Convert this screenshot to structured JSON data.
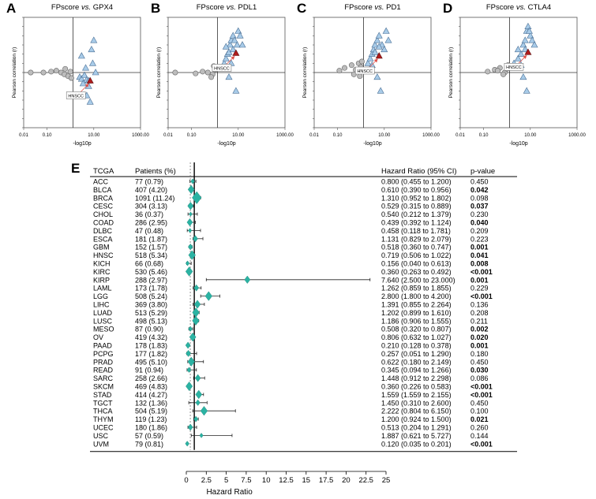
{
  "panels": [
    {
      "letter": "A",
      "title_prefix": "FPscore ",
      "title_vs": "vs.",
      "title_gene": " GPX4"
    },
    {
      "letter": "B",
      "title_prefix": "FPscore ",
      "title_vs": "vs.",
      "title_gene": " PDL1"
    },
    {
      "letter": "C",
      "title_prefix": "FPscore ",
      "title_vs": "vs.",
      "title_gene": " PD1"
    },
    {
      "letter": "D",
      "title_prefix": "FPscore ",
      "title_vs": "vs.",
      "title_gene": " CTLA4"
    }
  ],
  "panel_e_letter": "E",
  "colors": {
    "teal": "#2bb3a3",
    "gray_point": "#bdbdbd",
    "blue_triangle": "#a8cbe8",
    "red_triangle": "#b01c1c",
    "annotation": "#e0524a"
  },
  "chart_data": [
    {
      "type": "scatter",
      "panel": "A",
      "title": "FPscore vs. GPX4",
      "xlabel": "-log10p",
      "ylabel": "Pearson correlation (r)",
      "xscale": "log",
      "xlim": [
        0.01,
        1000
      ],
      "ylim": [
        -0.6,
        0.6
      ],
      "x_ticks": [
        "0.01",
        "0.10",
        "10.00",
        "1000.00"
      ],
      "y_ticks": [
        "0.6",
        "0.5",
        "0.4",
        "0.3",
        "0.2",
        "0.1",
        "0.0",
        "-0.1",
        "-0.2",
        "-0.3",
        "-0.4",
        "-0.5",
        "-0.6"
      ],
      "vline_x": 1.3,
      "annotation": "HNSCC",
      "highlight": {
        "x": 7.0,
        "y": -0.09
      },
      "nonsig": [
        [
          0.02,
          0.0
        ],
        [
          0.07,
          0.0
        ],
        [
          0.15,
          0.01
        ],
        [
          0.25,
          0.02
        ],
        [
          0.4,
          0.0
        ],
        [
          0.55,
          -0.02
        ],
        [
          0.8,
          -0.04
        ],
        [
          1.0,
          0.01
        ],
        [
          0.6,
          0.04
        ],
        [
          1.1,
          -0.06
        ]
      ],
      "sig": [
        [
          2.5,
          -0.05
        ],
        [
          3.0,
          -0.07
        ],
        [
          4.0,
          -0.03
        ],
        [
          5.0,
          -0.08
        ],
        [
          6.0,
          -0.09
        ],
        [
          3.0,
          0.18
        ],
        [
          4.5,
          0.05
        ],
        [
          8.0,
          0.25
        ],
        [
          9.0,
          0.1
        ],
        [
          10.0,
          0.35
        ],
        [
          6.0,
          -0.15
        ],
        [
          7.0,
          -0.32
        ],
        [
          12.0,
          0.0
        ],
        [
          5.0,
          -0.25
        ],
        [
          3.5,
          -0.12
        ]
      ]
    },
    {
      "type": "scatter",
      "panel": "B",
      "title": "FPscore vs. PDL1",
      "xlabel": "-log10p",
      "ylabel": "Pearson correlation (r)",
      "xscale": "log",
      "xlim": [
        0.01,
        1000
      ],
      "ylim": [
        -0.6,
        0.6
      ],
      "x_ticks": [
        "0.01",
        "0.10",
        "10.00",
        "1000.00"
      ],
      "y_ticks": [
        "0.6",
        "0.5",
        "0.4",
        "0.3",
        "0.2",
        "0.1",
        "0.0",
        "-0.1",
        "-0.2",
        "-0.3",
        "-0.4",
        "-0.5",
        "-0.6"
      ],
      "vline_x": 1.3,
      "annotation": "HNSCC",
      "highlight": {
        "x": 8.0,
        "y": 0.21
      },
      "nonsig": [
        [
          0.02,
          0.0
        ],
        [
          0.15,
          -0.01
        ],
        [
          0.3,
          0.01
        ],
        [
          0.5,
          0.0
        ],
        [
          0.8,
          -0.02
        ],
        [
          1.0,
          0.03
        ],
        [
          0.7,
          -0.05
        ],
        [
          1.1,
          0.05
        ],
        [
          0.9,
          0.07
        ]
      ],
      "sig": [
        [
          2.0,
          0.05
        ],
        [
          2.5,
          0.1
        ],
        [
          3.0,
          0.15
        ],
        [
          3.5,
          0.2
        ],
        [
          4.0,
          0.22
        ],
        [
          4.5,
          0.3
        ],
        [
          5.0,
          0.35
        ],
        [
          6.0,
          0.4
        ],
        [
          7.0,
          0.35
        ],
        [
          9.0,
          0.3
        ],
        [
          10.0,
          0.45
        ],
        [
          12.0,
          0.4
        ],
        [
          15.0,
          0.3
        ],
        [
          4.0,
          -0.05
        ],
        [
          8.0,
          -0.2
        ],
        [
          6.0,
          0.25
        ],
        [
          3.0,
          0.28
        ],
        [
          5.0,
          0.1
        ]
      ]
    },
    {
      "type": "scatter",
      "panel": "C",
      "title": "FPscore vs. PD1",
      "xlabel": "-log10p",
      "ylabel": "Pearson correlation (r)",
      "xscale": "log",
      "xlim": [
        0.01,
        1000
      ],
      "ylim": [
        -0.6,
        0.6
      ],
      "x_ticks": [
        "0.01",
        "0.10",
        "10.00",
        "1000.00"
      ],
      "y_ticks": [
        "0.6",
        "0.5",
        "0.4",
        "0.3",
        "0.2",
        "0.1",
        "0.0",
        "-0.1",
        "-0.2",
        "-0.3",
        "-0.4",
        "-0.5",
        "-0.6"
      ],
      "vline_x": 1.3,
      "annotation": "HNSCC",
      "highlight": {
        "x": 6.0,
        "y": 0.18
      },
      "nonsig": [
        [
          0.12,
          0.02
        ],
        [
          0.2,
          0.05
        ],
        [
          0.4,
          0.08
        ],
        [
          0.6,
          0.03
        ],
        [
          0.8,
          0.1
        ],
        [
          1.0,
          0.06
        ],
        [
          0.5,
          -0.02
        ],
        [
          1.1,
          0.12
        ],
        [
          0.9,
          -0.04
        ]
      ],
      "sig": [
        [
          2.0,
          0.1
        ],
        [
          2.5,
          0.15
        ],
        [
          3.0,
          0.2
        ],
        [
          3.5,
          0.25
        ],
        [
          4.0,
          0.3
        ],
        [
          5.0,
          0.35
        ],
        [
          6.0,
          0.4
        ],
        [
          8.0,
          0.3
        ],
        [
          10.0,
          0.25
        ],
        [
          12.0,
          0.45
        ],
        [
          4.0,
          0.22
        ],
        [
          3.0,
          0.08
        ],
        [
          5.0,
          -0.05
        ],
        [
          7.0,
          -0.2
        ],
        [
          15.0,
          0.35
        ],
        [
          6.0,
          0.28
        ]
      ]
    },
    {
      "type": "scatter",
      "panel": "D",
      "title": "FPscore vs. CTLA4",
      "xlabel": "-log10p",
      "ylabel": "Pearson correlation (r)",
      "xscale": "log",
      "xlim": [
        0.01,
        1000
      ],
      "ylim": [
        -0.6,
        0.6
      ],
      "x_ticks": [
        "0.01",
        "0.10",
        "10.00",
        "1000.00"
      ],
      "y_ticks": [
        "0.6",
        "0.5",
        "0.4",
        "0.3",
        "0.2",
        "0.1",
        "0.0",
        "-0.1",
        "-0.2",
        "-0.3",
        "-0.4",
        "-0.5",
        "-0.6"
      ],
      "vline_x": 1.3,
      "annotation": "HNSCC",
      "highlight": {
        "x": 8.0,
        "y": 0.22
      },
      "nonsig": [
        [
          0.15,
          0.01
        ],
        [
          0.3,
          0.03
        ],
        [
          0.5,
          0.05
        ],
        [
          0.8,
          0.0
        ],
        [
          1.0,
          0.04
        ],
        [
          0.7,
          -0.02
        ],
        [
          1.1,
          0.08
        ],
        [
          0.4,
          0.02
        ]
      ],
      "sig": [
        [
          2.0,
          0.1
        ],
        [
          3.0,
          0.15
        ],
        [
          4.0,
          0.2
        ],
        [
          5.0,
          0.3
        ],
        [
          6.0,
          0.35
        ],
        [
          7.0,
          0.45
        ],
        [
          8.0,
          0.5
        ],
        [
          10.0,
          0.4
        ],
        [
          12.0,
          0.35
        ],
        [
          15.0,
          0.3
        ],
        [
          4.0,
          0.08
        ],
        [
          6.0,
          0.25
        ],
        [
          9.0,
          0.45
        ],
        [
          5.0,
          -0.05
        ],
        [
          7.0,
          -0.2
        ],
        [
          3.0,
          0.25
        ]
      ]
    },
    {
      "type": "forest",
      "panel": "E",
      "headers": {
        "tcga": "TCGA",
        "patients": "Patients (%)",
        "hr": "Hazard Ratio (95% CI)",
        "pval": "p-value"
      },
      "xlabel": "Hazard Ratio",
      "xlim": [
        0,
        25
      ],
      "x_ticks": [
        "0",
        "2.5",
        "5",
        "7.5",
        "10",
        "12.5",
        "15",
        "17.5",
        "20",
        "22.5",
        "25"
      ],
      "ref_line": 1,
      "rows": [
        {
          "cancer": "ACC",
          "patients": "77 (0.79)",
          "hr_text": "0.800 (0.455 to 1.200)",
          "p": "0.450",
          "bold": false,
          "hr": 0.8,
          "lo": 0.455,
          "hi": 1.2,
          "n": 77
        },
        {
          "cancer": "BLCA",
          "patients": "407 (4.20)",
          "hr_text": "0.610 (0.390 to 0.956)",
          "p": "0.042",
          "bold": true,
          "hr": 0.61,
          "lo": 0.39,
          "hi": 0.956,
          "n": 407
        },
        {
          "cancer": "BRCA",
          "patients": "1091 (11.24)",
          "hr_text": "1.310 (0.952 to 1.802)",
          "p": "0.098",
          "bold": false,
          "hr": 1.31,
          "lo": 0.952,
          "hi": 1.802,
          "n": 1091
        },
        {
          "cancer": "CESC",
          "patients": "304 (3.13)",
          "hr_text": "0.529 (0.315 to 0.889)",
          "p": "0.037",
          "bold": true,
          "hr": 0.529,
          "lo": 0.315,
          "hi": 0.889,
          "n": 304
        },
        {
          "cancer": "CHOL",
          "patients": "36 (0.37)",
          "hr_text": "0.540 (0.212 to 1.379)",
          "p": "0.230",
          "bold": false,
          "hr": 0.54,
          "lo": 0.212,
          "hi": 1.379,
          "n": 36
        },
        {
          "cancer": "COAD",
          "patients": "286 (2.95)",
          "hr_text": "0.439 (0.392 to 1.124)",
          "p": "0.040",
          "bold": true,
          "hr": 0.439,
          "lo": 0.392,
          "hi": 1.124,
          "n": 286
        },
        {
          "cancer": "DLBC",
          "patients": "47 (0.48)",
          "hr_text": "0.458 (0.118 to 1.781)",
          "p": "0.209",
          "bold": false,
          "hr": 0.458,
          "lo": 0.118,
          "hi": 1.781,
          "n": 47
        },
        {
          "cancer": "ESCA",
          "patients": "181 (1.87)",
          "hr_text": "1.131 (0.829 to 2.079)",
          "p": "0.223",
          "bold": false,
          "hr": 1.131,
          "lo": 0.829,
          "hi": 2.079,
          "n": 181
        },
        {
          "cancer": "GBM",
          "patients": "152 (1.57)",
          "hr_text": "0.518 (0.360 to 0.747)",
          "p": "0.001",
          "bold": true,
          "hr": 0.518,
          "lo": 0.36,
          "hi": 0.747,
          "n": 152
        },
        {
          "cancer": "HNSC",
          "patients": "518 (5.34)",
          "hr_text": "0.719 (0.506 to 1.022)",
          "p": "0.041",
          "bold": true,
          "hr": 0.719,
          "lo": 0.506,
          "hi": 1.022,
          "n": 518
        },
        {
          "cancer": "KICH",
          "patients": "66 (0.68)",
          "hr_text": "0.156 (0.040 to 0.613)",
          "p": "0.008",
          "bold": true,
          "hr": 0.156,
          "lo": 0.04,
          "hi": 0.613,
          "n": 66
        },
        {
          "cancer": "KIRC",
          "patients": "530 (5.46)",
          "hr_text": "0.360 (0.263 to 0.492)",
          "p": "<0.001",
          "bold": true,
          "hr": 0.36,
          "lo": 0.263,
          "hi": 0.492,
          "n": 530
        },
        {
          "cancer": "KIRP",
          "patients": "288 (2.97)",
          "hr_text": "7.640 (2.500 to 23.000)",
          "p": "0.001",
          "bold": true,
          "hr": 7.64,
          "lo": 2.5,
          "hi": 23.0,
          "n": 288
        },
        {
          "cancer": "LAML",
          "patients": "173 (1.78)",
          "hr_text": "1.262 (0.859 to 1.855)",
          "p": "0.229",
          "bold": false,
          "hr": 1.262,
          "lo": 0.859,
          "hi": 1.855,
          "n": 173
        },
        {
          "cancer": "LGG",
          "patients": "508 (5.24)",
          "hr_text": "2.800 (1.800 to 4.200)",
          "p": "<0.001",
          "bold": true,
          "hr": 2.8,
          "lo": 1.8,
          "hi": 4.2,
          "n": 508
        },
        {
          "cancer": "LIHC",
          "patients": "369 (3.80)",
          "hr_text": "1.391 (0.855 to 2.264)",
          "p": "0.136",
          "bold": false,
          "hr": 1.391,
          "lo": 0.855,
          "hi": 2.264,
          "n": 369
        },
        {
          "cancer": "LUAD",
          "patients": "513 (5.29)",
          "hr_text": "1.202 (0.899 to 1.610)",
          "p": "0.208",
          "bold": false,
          "hr": 1.202,
          "lo": 0.899,
          "hi": 1.61,
          "n": 513
        },
        {
          "cancer": "LUSC",
          "patients": "498 (5.13)",
          "hr_text": "1.186 (0.906 to 1.555)",
          "p": "0.211",
          "bold": false,
          "hr": 1.186,
          "lo": 0.906,
          "hi": 1.555,
          "n": 498
        },
        {
          "cancer": "MESO",
          "patients": "87 (0.90)",
          "hr_text": "0.508 (0.320 to 0.807)",
          "p": "0.002",
          "bold": true,
          "hr": 0.508,
          "lo": 0.32,
          "hi": 0.807,
          "n": 87
        },
        {
          "cancer": "OV",
          "patients": "419 (4.32)",
          "hr_text": "0.806 (0.632 to 1.027)",
          "p": "0.020",
          "bold": true,
          "hr": 0.806,
          "lo": 0.632,
          "hi": 1.027,
          "n": 419
        },
        {
          "cancer": "PAAD",
          "patients": "178 (1.83)",
          "hr_text": "0.210 (0.128 to 0.378)",
          "p": "0.001",
          "bold": true,
          "hr": 0.21,
          "lo": 0.128,
          "hi": 0.378,
          "n": 178
        },
        {
          "cancer": "PCPG",
          "patients": "177 (1.82)",
          "hr_text": "0.257 (0.051 to 1.290)",
          "p": "0.180",
          "bold": false,
          "hr": 0.257,
          "lo": 0.051,
          "hi": 1.29,
          "n": 177
        },
        {
          "cancer": "PRAD",
          "patients": "495 (5.10)",
          "hr_text": "0.622 (0.180 to 2.149)",
          "p": "0.450",
          "bold": false,
          "hr": 0.622,
          "lo": 0.18,
          "hi": 2.149,
          "n": 495
        },
        {
          "cancer": "READ",
          "patients": "91 (0.94)",
          "hr_text": "0.345 (0.094 to 1.266)",
          "p": "0.030",
          "bold": true,
          "hr": 0.345,
          "lo": 0.094,
          "hi": 1.266,
          "n": 91
        },
        {
          "cancer": "SARC",
          "patients": "258 (2.66)",
          "hr_text": "1.448 (0.912 to 2.298)",
          "p": "0.086",
          "bold": false,
          "hr": 1.448,
          "lo": 0.912,
          "hi": 2.298,
          "n": 258
        },
        {
          "cancer": "SKCM",
          "patients": "469 (4.83)",
          "hr_text": "0.360 (0.226 to 0.583)",
          "p": "<0.001",
          "bold": true,
          "hr": 0.36,
          "lo": 0.226,
          "hi": 0.583,
          "n": 469
        },
        {
          "cancer": "STAD",
          "patients": "414 (4.27)",
          "hr_text": "1.559 (1.559 to 2.155)",
          "p": "<0.001",
          "bold": true,
          "hr": 1.559,
          "lo": 1.559,
          "hi": 2.155,
          "n": 414
        },
        {
          "cancer": "TGCT",
          "patients": "132 (1.36)",
          "hr_text": "1.450 (0.310 to 2.600)",
          "p": "0.450",
          "bold": false,
          "hr": 1.45,
          "lo": 0.31,
          "hi": 2.6,
          "n": 132
        },
        {
          "cancer": "THCA",
          "patients": "504 (5.19)",
          "hr_text": "2.222 (0.804 to 6.150)",
          "p": "0.100",
          "bold": false,
          "hr": 2.222,
          "lo": 0.804,
          "hi": 6.15,
          "n": 504
        },
        {
          "cancer": "THYM",
          "patients": "119 (1.23)",
          "hr_text": "1.200 (0.924 to 1.500)",
          "p": "0.021",
          "bold": true,
          "hr": 1.2,
          "lo": 0.924,
          "hi": 1.5,
          "n": 119
        },
        {
          "cancer": "UCEC",
          "patients": "180 (1.86)",
          "hr_text": "0.513 (0.204 to 1.291)",
          "p": "0.260",
          "bold": false,
          "hr": 0.513,
          "lo": 0.204,
          "hi": 1.291,
          "n": 180
        },
        {
          "cancer": "USC",
          "patients": "57 (0.59)",
          "hr_text": "1.887 (0.621 to 5.727)",
          "p": "0.144",
          "bold": false,
          "hr": 1.887,
          "lo": 0.621,
          "hi": 5.727,
          "n": 57
        },
        {
          "cancer": "UVM",
          "patients": "79 (0.81)",
          "hr_text": "0.120 (0.035 to 0.201)",
          "p": "<0.001",
          "bold": true,
          "hr": 0.12,
          "lo": 0.035,
          "hi": 0.201,
          "n": 79
        }
      ]
    }
  ]
}
